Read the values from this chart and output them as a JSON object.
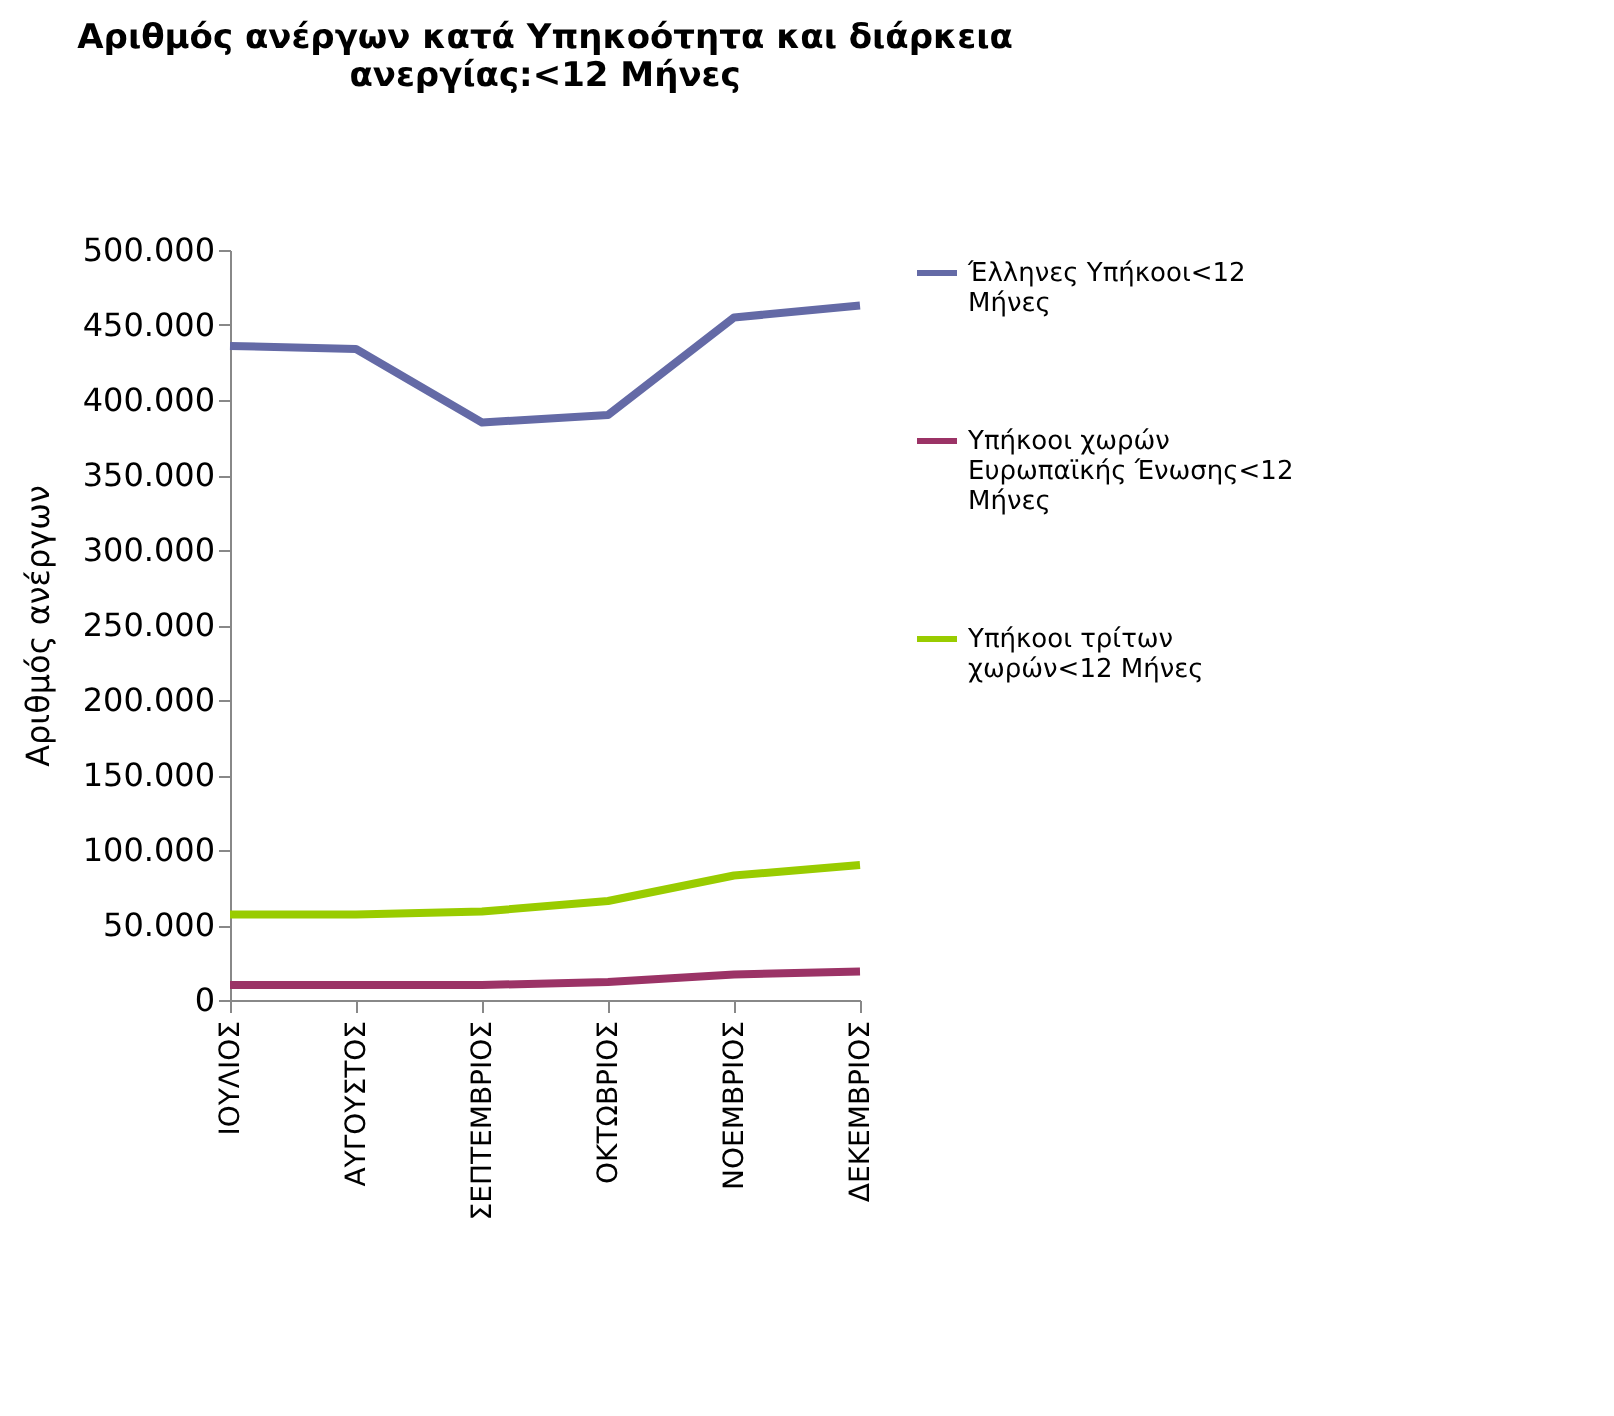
{
  "chart_data": {
    "type": "line",
    "title": "Αριθμός ανέργων κατά Υπηκοότητα και διάρκεια ανεργίας:<12 Μήνες",
    "ylabel": "Αριθμός ανέργων",
    "categories": [
      "ΙΟΥΛΙΟΣ",
      "ΑΥΓΟΥΣΤΟΣ",
      "ΣΕΠΤΕΜΒΡΙΟΣ",
      "ΟΚΤΩΒΡΙΟΣ",
      "ΝΟΕΜΒΡΙΟΣ",
      "ΔΕΚΕΜΒΡΙΟΣ"
    ],
    "series": [
      {
        "name": "Έλληνες Υπήκοοι<12 Μήνες",
        "color": "#646aa6",
        "values": [
          436000,
          434000,
          385000,
          390000,
          455000,
          463000
        ]
      },
      {
        "name": "Υπήκοοι χωρών Ευρωπαϊκής Ένωσης<12 Μήνες",
        "color": "#9b3366",
        "values": [
          10000,
          10000,
          10000,
          12000,
          17000,
          19000
        ]
      },
      {
        "name": "Υπήκοοι τρίτων χωρών<12 Μήνες",
        "color": "#99cc00",
        "values": [
          57000,
          57000,
          59000,
          66000,
          83000,
          90000
        ]
      }
    ],
    "ylim": [
      0,
      500000
    ],
    "yticks": [
      0,
      {
        "value": 50000,
        "label": "50.000"
      },
      {
        "value": 100000,
        "label": "100.000"
      },
      {
        "value": 150000,
        "label": "150.000"
      },
      {
        "value": 200000,
        "label": "200.000"
      },
      {
        "value": 250000,
        "label": "250.000"
      },
      {
        "value": 300000,
        "label": "300.000"
      },
      {
        "value": 350000,
        "label": "350.000"
      },
      {
        "value": 400000,
        "label": "400.000"
      },
      {
        "value": 450000,
        "label": "450.000"
      },
      {
        "value": 500000,
        "label": "500.000"
      }
    ],
    "grid": false,
    "legend": "right",
    "marker": "none",
    "line_style": "solid"
  }
}
